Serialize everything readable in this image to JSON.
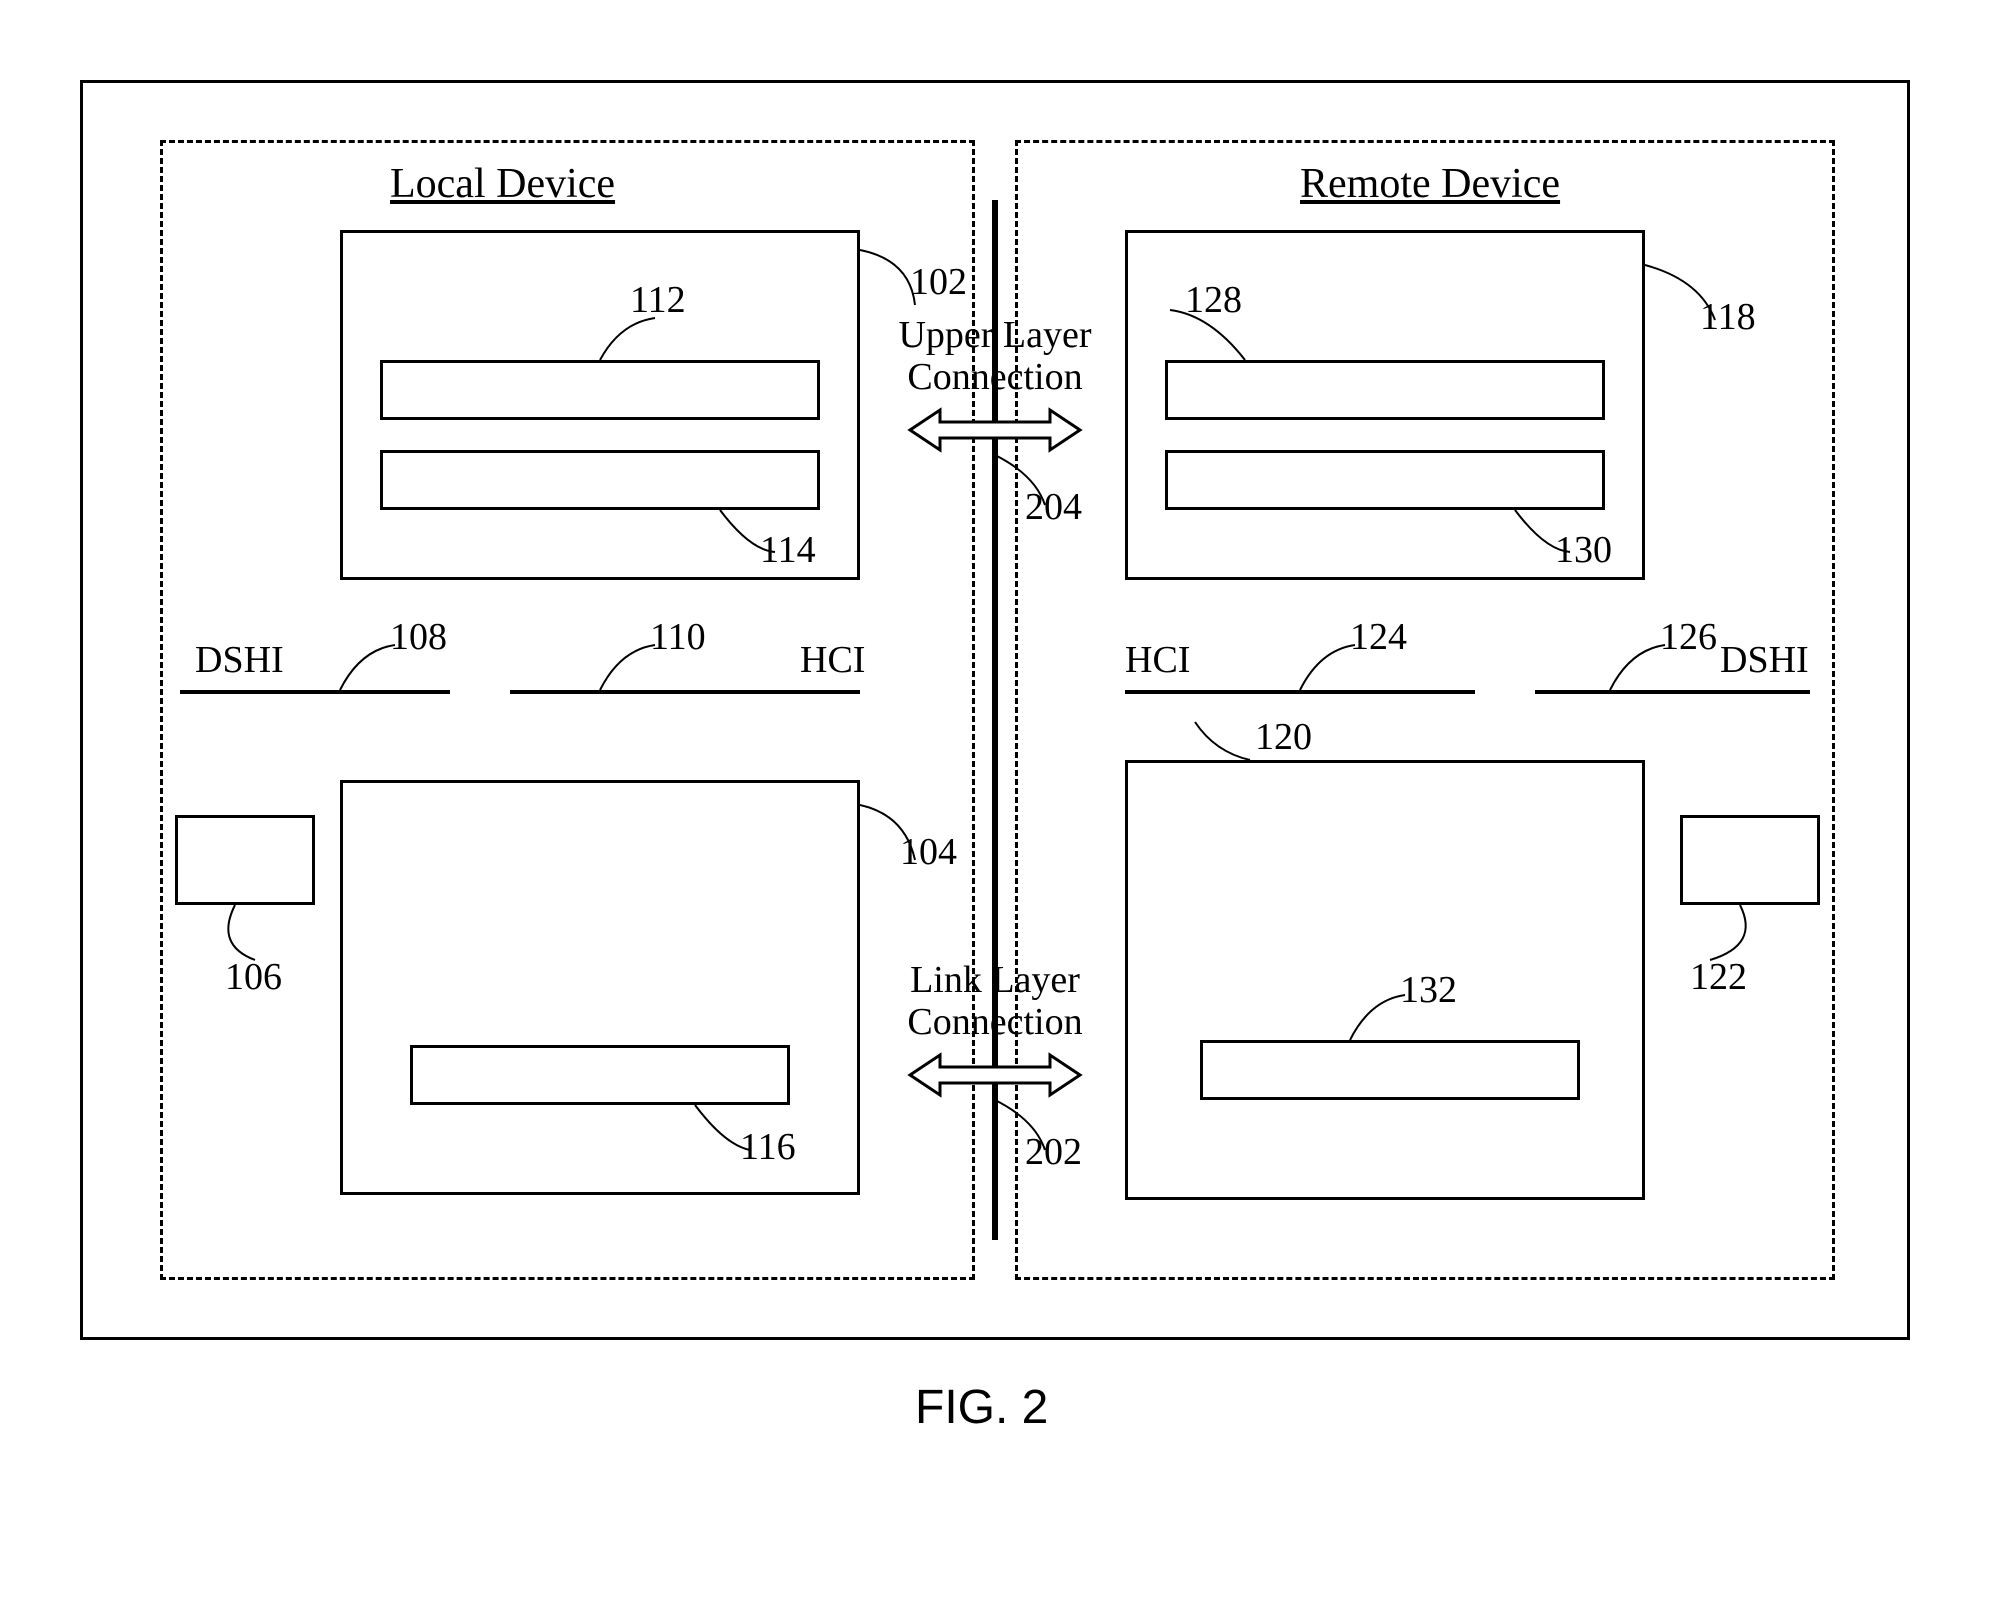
{
  "figure": {
    "caption": "FIG. 2",
    "colors": {
      "stroke": "#000000",
      "bg": "#ffffff"
    },
    "font": {
      "label_family": "Times New Roman, serif",
      "label_size": 38,
      "caption_family": "Arial, sans-serif",
      "caption_size": 48
    },
    "line_width": 3
  },
  "titles": {
    "local": "Local Device",
    "remote": "Remote Device"
  },
  "interfaces": {
    "dshi": "DSHI",
    "hci": "HCI"
  },
  "connections": {
    "upper": "Upper Layer\nConnection",
    "link": "Link Layer\nConnection"
  },
  "refs": {
    "r102": "102",
    "r104": "104",
    "r106": "106",
    "r108": "108",
    "r110": "110",
    "r112": "112",
    "r114": "114",
    "r116": "116",
    "r118": "118",
    "r120": "120",
    "r122": "122",
    "r124": "124",
    "r126": "126",
    "r128": "128",
    "r130": "130",
    "r132": "132",
    "r202": "202",
    "r204": "204"
  }
}
